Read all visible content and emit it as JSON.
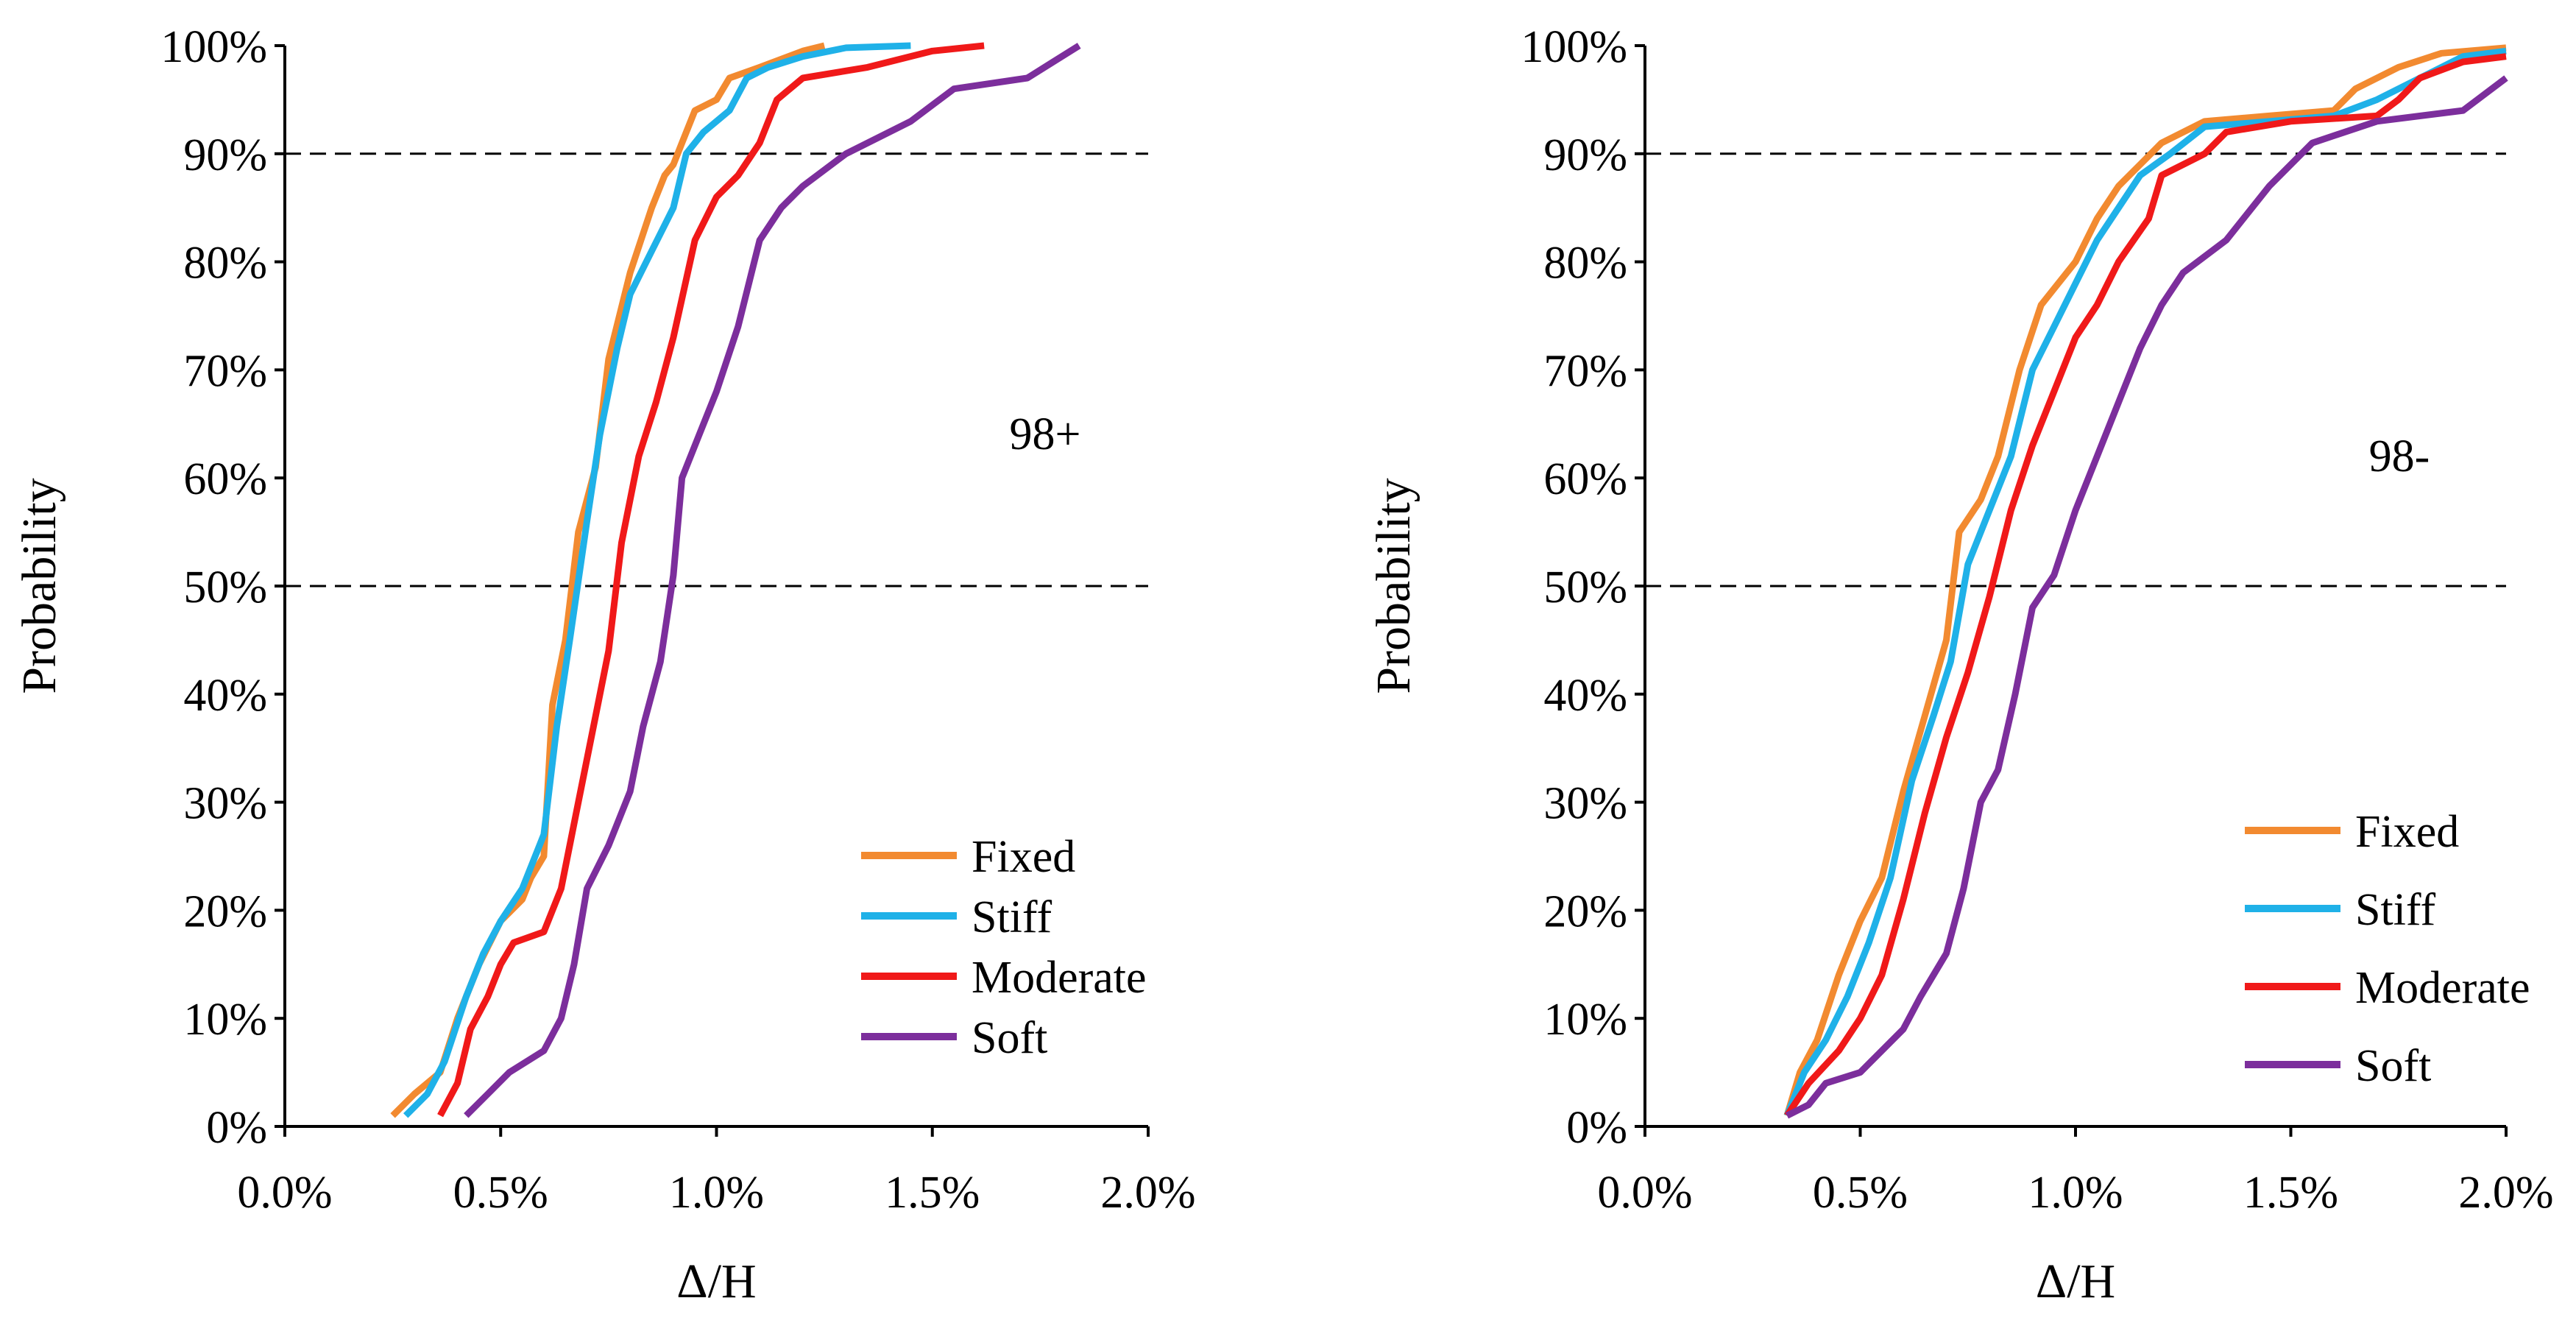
{
  "chart_data": [
    {
      "type": "line",
      "annotation": "98+",
      "xlabel": "Δ/H",
      "ylabel": "Probability",
      "xlim": [
        0,
        2.0
      ],
      "ylim": [
        0,
        100
      ],
      "x_ticks": [
        "0.0%",
        "0.5%",
        "1.0%",
        "1.5%",
        "2.0%"
      ],
      "y_ticks": [
        "0%",
        "10%",
        "20%",
        "30%",
        "40%",
        "50%",
        "60%",
        "70%",
        "80%",
        "90%",
        "100%"
      ],
      "reference_lines_y": [
        50,
        90
      ],
      "legend": {
        "placement": "bottom-right",
        "entries": [
          "Fixed",
          "Stiff",
          "Moderate",
          "Soft"
        ]
      },
      "series": [
        {
          "name": "Fixed",
          "color": "#F28A30",
          "points": [
            [
              0.25,
              1
            ],
            [
              0.3,
              3
            ],
            [
              0.36,
              5
            ],
            [
              0.4,
              10
            ],
            [
              0.45,
              15
            ],
            [
              0.5,
              19
            ],
            [
              0.55,
              21
            ],
            [
              0.57,
              23
            ],
            [
              0.6,
              25
            ],
            [
              0.62,
              39
            ],
            [
              0.65,
              45
            ],
            [
              0.68,
              55
            ],
            [
              0.72,
              61
            ],
            [
              0.75,
              71
            ],
            [
              0.8,
              79
            ],
            [
              0.85,
              85
            ],
            [
              0.88,
              88
            ],
            [
              0.9,
              89
            ],
            [
              0.92,
              91
            ],
            [
              0.95,
              94
            ],
            [
              1.0,
              95
            ],
            [
              1.03,
              97
            ],
            [
              1.1,
              98
            ],
            [
              1.2,
              99.5
            ],
            [
              1.25,
              100
            ]
          ]
        },
        {
          "name": "Stiff",
          "color": "#1FB1E8",
          "points": [
            [
              0.28,
              1
            ],
            [
              0.33,
              3
            ],
            [
              0.37,
              6
            ],
            [
              0.42,
              12
            ],
            [
              0.46,
              16
            ],
            [
              0.5,
              19
            ],
            [
              0.55,
              22
            ],
            [
              0.6,
              27
            ],
            [
              0.63,
              37
            ],
            [
              0.66,
              45
            ],
            [
              0.7,
              56
            ],
            [
              0.73,
              64
            ],
            [
              0.77,
              72
            ],
            [
              0.8,
              77
            ],
            [
              0.85,
              81
            ],
            [
              0.9,
              85
            ],
            [
              0.93,
              90
            ],
            [
              0.97,
              92
            ],
            [
              1.03,
              94
            ],
            [
              1.07,
              97
            ],
            [
              1.12,
              98
            ],
            [
              1.2,
              99
            ],
            [
              1.3,
              99.8
            ],
            [
              1.45,
              100
            ]
          ]
        },
        {
          "name": "Moderate",
          "color": "#F01919",
          "points": [
            [
              0.36,
              1
            ],
            [
              0.4,
              4
            ],
            [
              0.43,
              9
            ],
            [
              0.47,
              12
            ],
            [
              0.5,
              15
            ],
            [
              0.53,
              17
            ],
            [
              0.6,
              18
            ],
            [
              0.64,
              22
            ],
            [
              0.68,
              30
            ],
            [
              0.72,
              38
            ],
            [
              0.75,
              44
            ],
            [
              0.78,
              54
            ],
            [
              0.82,
              62
            ],
            [
              0.86,
              67
            ],
            [
              0.9,
              73
            ],
            [
              0.95,
              82
            ],
            [
              1.0,
              86
            ],
            [
              1.05,
              88
            ],
            [
              1.1,
              91
            ],
            [
              1.14,
              95
            ],
            [
              1.2,
              97
            ],
            [
              1.35,
              98
            ],
            [
              1.5,
              99.5
            ],
            [
              1.62,
              100
            ]
          ]
        },
        {
          "name": "Soft",
          "color": "#7C2E9C",
          "points": [
            [
              0.42,
              1
            ],
            [
              0.47,
              3
            ],
            [
              0.52,
              5
            ],
            [
              0.6,
              7
            ],
            [
              0.64,
              10
            ],
            [
              0.67,
              15
            ],
            [
              0.7,
              22
            ],
            [
              0.75,
              26
            ],
            [
              0.8,
              31
            ],
            [
              0.83,
              37
            ],
            [
              0.87,
              43
            ],
            [
              0.9,
              51
            ],
            [
              0.92,
              60
            ],
            [
              0.96,
              64
            ],
            [
              1.0,
              68
            ],
            [
              1.05,
              74
            ],
            [
              1.1,
              82
            ],
            [
              1.15,
              85
            ],
            [
              1.2,
              87
            ],
            [
              1.3,
              90
            ],
            [
              1.45,
              93
            ],
            [
              1.55,
              96
            ],
            [
              1.72,
              97
            ],
            [
              1.78,
              98.5
            ],
            [
              1.84,
              100
            ]
          ]
        }
      ]
    },
    {
      "type": "line",
      "annotation": "98-",
      "xlabel": "Δ/H",
      "ylabel": "Probability",
      "xlim": [
        0,
        2.0
      ],
      "ylim": [
        0,
        100
      ],
      "x_ticks": [
        "0.0%",
        "0.5%",
        "1.0%",
        "1.5%",
        "2.0%"
      ],
      "y_ticks": [
        "0%",
        "10%",
        "20%",
        "30%",
        "40%",
        "50%",
        "60%",
        "70%",
        "80%",
        "90%",
        "100%"
      ],
      "reference_lines_y": [
        50,
        90
      ],
      "legend": {
        "placement": "bottom-right",
        "entries": [
          "Fixed",
          "Stiff",
          "Moderate",
          "Soft"
        ]
      },
      "series": [
        {
          "name": "Fixed",
          "color": "#F28A30",
          "points": [
            [
              0.33,
              1
            ],
            [
              0.36,
              5
            ],
            [
              0.4,
              8
            ],
            [
              0.45,
              14
            ],
            [
              0.5,
              19
            ],
            [
              0.55,
              23
            ],
            [
              0.6,
              31
            ],
            [
              0.65,
              38
            ],
            [
              0.7,
              45
            ],
            [
              0.73,
              55
            ],
            [
              0.78,
              58
            ],
            [
              0.82,
              62
            ],
            [
              0.87,
              70
            ],
            [
              0.92,
              76
            ],
            [
              1.0,
              80
            ],
            [
              1.05,
              84
            ],
            [
              1.1,
              87
            ],
            [
              1.15,
              89
            ],
            [
              1.2,
              91
            ],
            [
              1.3,
              93
            ],
            [
              1.45,
              93.5
            ],
            [
              1.6,
              94
            ],
            [
              1.65,
              96
            ],
            [
              1.75,
              98
            ],
            [
              1.85,
              99.3
            ],
            [
              2.0,
              99.8
            ]
          ]
        },
        {
          "name": "Stiff",
          "color": "#1FB1E8",
          "points": [
            [
              0.33,
              1
            ],
            [
              0.37,
              5
            ],
            [
              0.42,
              8
            ],
            [
              0.47,
              12
            ],
            [
              0.52,
              17
            ],
            [
              0.57,
              23
            ],
            [
              0.62,
              32
            ],
            [
              0.67,
              38
            ],
            [
              0.71,
              43
            ],
            [
              0.75,
              52
            ],
            [
              0.8,
              57
            ],
            [
              0.85,
              62
            ],
            [
              0.9,
              70
            ],
            [
              0.95,
              74
            ],
            [
              1.0,
              78
            ],
            [
              1.05,
              82
            ],
            [
              1.1,
              85
            ],
            [
              1.15,
              88
            ],
            [
              1.22,
              90
            ],
            [
              1.3,
              92.5
            ],
            [
              1.45,
              93
            ],
            [
              1.6,
              93.5
            ],
            [
              1.7,
              95
            ],
            [
              1.8,
              97
            ],
            [
              1.9,
              99
            ],
            [
              2.0,
              99.5
            ]
          ]
        },
        {
          "name": "Moderate",
          "color": "#F01919",
          "points": [
            [
              0.33,
              1
            ],
            [
              0.38,
              4
            ],
            [
              0.45,
              7
            ],
            [
              0.5,
              10
            ],
            [
              0.55,
              14
            ],
            [
              0.6,
              21
            ],
            [
              0.65,
              29
            ],
            [
              0.7,
              36
            ],
            [
              0.75,
              42
            ],
            [
              0.8,
              49
            ],
            [
              0.85,
              57
            ],
            [
              0.9,
              63
            ],
            [
              0.95,
              68
            ],
            [
              1.0,
              73
            ],
            [
              1.05,
              76
            ],
            [
              1.1,
              80
            ],
            [
              1.17,
              84
            ],
            [
              1.2,
              88
            ],
            [
              1.3,
              90
            ],
            [
              1.35,
              92
            ],
            [
              1.5,
              93
            ],
            [
              1.7,
              93.5
            ],
            [
              1.75,
              95
            ],
            [
              1.8,
              97
            ],
            [
              1.9,
              98.5
            ],
            [
              2.0,
              99
            ]
          ]
        },
        {
          "name": "Soft",
          "color": "#7C2E9C",
          "points": [
            [
              0.33,
              1
            ],
            [
              0.38,
              2
            ],
            [
              0.42,
              4
            ],
            [
              0.5,
              5
            ],
            [
              0.55,
              7
            ],
            [
              0.6,
              9
            ],
            [
              0.64,
              12
            ],
            [
              0.7,
              16
            ],
            [
              0.74,
              22
            ],
            [
              0.78,
              30
            ],
            [
              0.82,
              33
            ],
            [
              0.86,
              40
            ],
            [
              0.9,
              48
            ],
            [
              0.95,
              51
            ],
            [
              1.0,
              57
            ],
            [
              1.05,
              62
            ],
            [
              1.1,
              67
            ],
            [
              1.15,
              72
            ],
            [
              1.2,
              76
            ],
            [
              1.25,
              79
            ],
            [
              1.35,
              82
            ],
            [
              1.45,
              87
            ],
            [
              1.55,
              91
            ],
            [
              1.7,
              93
            ],
            [
              1.9,
              94
            ],
            [
              2.0,
              97
            ]
          ]
        }
      ]
    }
  ]
}
